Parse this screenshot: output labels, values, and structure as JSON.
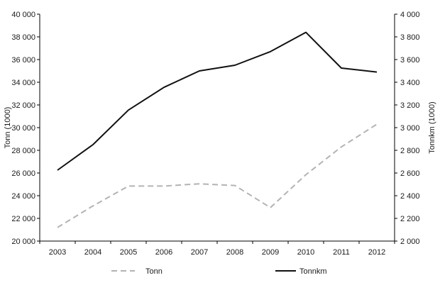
{
  "chart_data": {
    "type": "line",
    "categories": [
      "2003",
      "2004",
      "2005",
      "2006",
      "2007",
      "2008",
      "2009",
      "2010",
      "2011",
      "2012"
    ],
    "y_left": {
      "label": "Tonn (1000)",
      "range": [
        20000,
        40000
      ],
      "ticks": [
        20000,
        22000,
        24000,
        26000,
        28000,
        30000,
        32000,
        34000,
        36000,
        38000,
        40000
      ],
      "tick_labels": [
        "20 000",
        "22 000",
        "24 000",
        "26 000",
        "28 000",
        "30 000",
        "32 000",
        "34 000",
        "36 000",
        "38 000",
        "40 000"
      ]
    },
    "y_right": {
      "label": "Tonnkm (1000)",
      "range": [
        2000,
        4000
      ],
      "ticks": [
        2000,
        2200,
        2400,
        2600,
        2800,
        3000,
        3200,
        3400,
        3600,
        3800,
        4000
      ],
      "tick_labels": [
        "2 000",
        "2 200",
        "2 400",
        "2 600",
        "2 800",
        "3 000",
        "3 200",
        "3 400",
        "3 600",
        "3 800",
        "4 000"
      ]
    },
    "series": [
      {
        "name": "Tonn",
        "axis": "left",
        "style": "dashed",
        "color": "#b3b3b3",
        "values": [
          21200,
          23100,
          24850,
          24850,
          25050,
          24900,
          22950,
          25850,
          28300,
          30300
        ]
      },
      {
        "name": "Tonnkm",
        "axis": "right",
        "style": "solid",
        "color": "#111111",
        "values": [
          2625,
          2850,
          3155,
          3355,
          3500,
          3550,
          3670,
          3840,
          3525,
          3490
        ]
      }
    ],
    "legend": {
      "placement": "bottom"
    },
    "grid": false
  }
}
